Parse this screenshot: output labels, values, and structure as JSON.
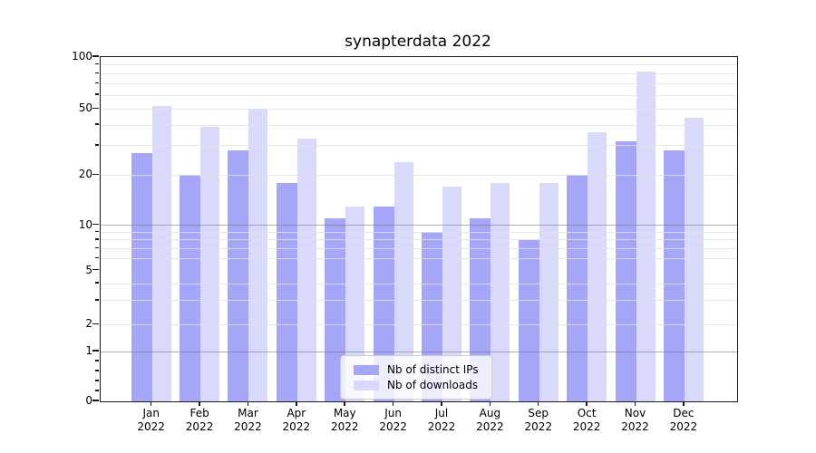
{
  "chart_data": {
    "type": "bar",
    "title": "synapterdata 2022",
    "categories": [
      "Jan 2022",
      "Feb 2022",
      "Mar 2022",
      "Apr 2022",
      "May 2022",
      "Jun 2022",
      "Jul 2022",
      "Aug 2022",
      "Sep 2022",
      "Oct 2022",
      "Nov 2022",
      "Dec 2022"
    ],
    "series": [
      {
        "name": "Nb of distinct IPs",
        "color": "#a6a6f8",
        "values": [
          27,
          20,
          28,
          18,
          11,
          13,
          9,
          11,
          8,
          20,
          32,
          28
        ]
      },
      {
        "name": "Nb of downloads",
        "color": "#d9d9fb",
        "values": [
          52,
          39,
          50,
          33,
          13,
          24,
          17,
          18,
          18,
          36,
          82,
          44
        ]
      }
    ],
    "xlabel": "",
    "ylabel": "",
    "yscale": "symlog",
    "ylim": [
      0,
      100
    ],
    "y_tick_values": [
      100,
      50,
      20,
      10,
      5,
      2,
      1,
      0
    ],
    "y_tick_labels": [
      "100",
      "50",
      "20",
      "10",
      "5",
      "2",
      "1",
      "0"
    ],
    "y_major_grid_values": [
      1,
      10
    ],
    "y_minor_grid_values": [
      2,
      3,
      4,
      6,
      7,
      8,
      9,
      20,
      30,
      40,
      50,
      60,
      70,
      80,
      90
    ],
    "y_minor_tick_values": [
      0.2,
      0.4,
      0.6,
      0.8,
      3,
      4,
      6,
      7,
      8,
      9,
      30,
      40,
      60,
      70,
      80,
      90
    ],
    "grid": "on",
    "legend_position": "lower center",
    "legend_entries": [
      "Nb of distinct IPs",
      "Nb of downloads"
    ]
  }
}
